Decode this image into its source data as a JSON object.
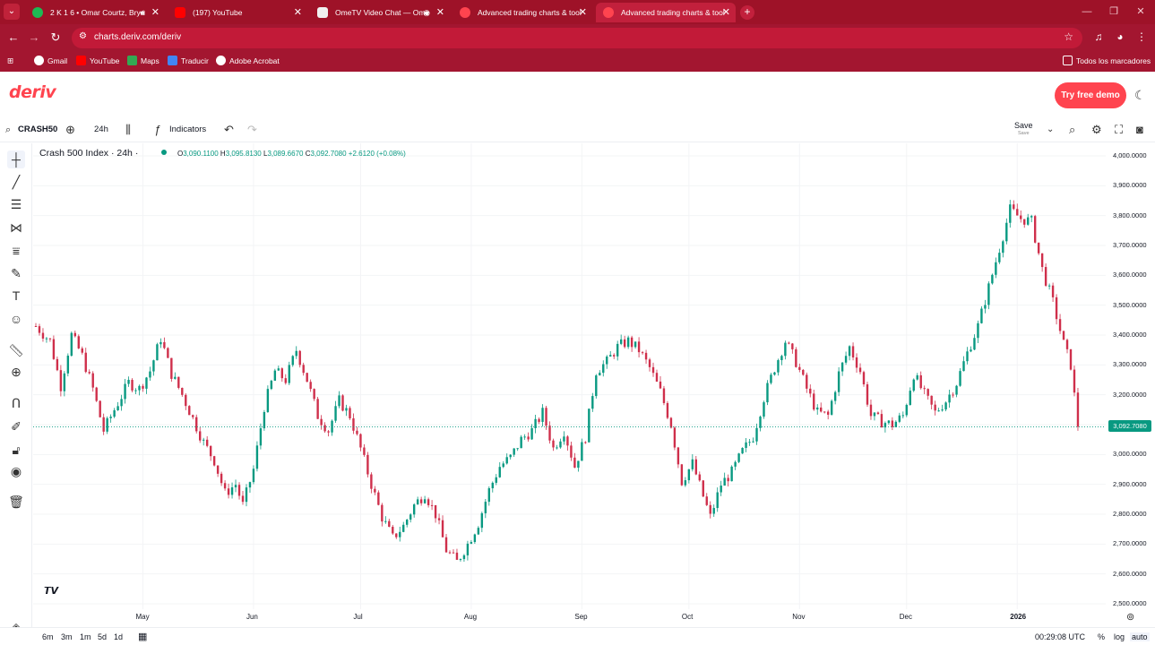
{
  "browser": {
    "tabs": [
      {
        "title": "2 K 1 6 • Omar Courtz, Brya",
        "has_audio": true,
        "icon": "spotify-icon",
        "color": "#1db954"
      },
      {
        "title": "(197) YouTube",
        "icon": "youtube-icon",
        "color": "#ff0000"
      },
      {
        "title": "OmeTV Video Chat — Ome",
        "icon": "ometv-icon",
        "color": "#f0f0f0"
      },
      {
        "title": "Advanced trading charts & tool",
        "icon": "deriv-icon",
        "color": "#ff444f"
      },
      {
        "title": "Advanced trading charts & tool",
        "icon": "deriv-icon",
        "color": "#ff444f",
        "active": true
      }
    ],
    "url": "charts.deriv.com/deriv",
    "bookmarks": [
      {
        "label": "Gmail",
        "icon": "google-icon",
        "color": "#ffffff"
      },
      {
        "label": "YouTube",
        "icon": "youtube-icon",
        "color": "#ff0000"
      },
      {
        "label": "Maps",
        "icon": "maps-icon",
        "color": "#34a853"
      },
      {
        "label": "Traducir",
        "icon": "translate-icon",
        "color": "#4285f4"
      },
      {
        "label": "Adobe Acrobat",
        "icon": "acrobat-icon",
        "color": "#ffffff"
      }
    ],
    "all_bookmarks": "Todos los marcadores",
    "theme_color": "#a31630"
  },
  "site": {
    "logo": "deriv",
    "demo_button": "Try free demo",
    "brand_color": "#ff444f"
  },
  "toolbar": {
    "symbol": "CRASH50",
    "interval": "24h",
    "indicators": "Indicators",
    "save": "Save",
    "save_sub": "Save"
  },
  "legend": {
    "title": "Crash 500 Index · 24h ·",
    "open_label": "O",
    "open": "3,090.1100",
    "high_label": "H",
    "high": "3,095.8130",
    "low_label": "L",
    "low": "3,089.6670",
    "close_label": "C",
    "close": "3,092.7080",
    "change": "+2.6120 (+0.08%)"
  },
  "bottom": {
    "ranges": [
      "6m",
      "3m",
      "1m",
      "5d",
      "1d"
    ],
    "clock": "00:29:08 UTC",
    "percent": "%",
    "log": "log",
    "auto": "auto"
  },
  "chart_data": {
    "type": "candlestick",
    "title": "Crash 500 Index · 24h",
    "up_color": "#089981",
    "down_color": "#cf2f4b",
    "current_price": "3,092.7080",
    "current_value": 3092.708,
    "ylim": [
      2450,
      4050
    ],
    "y_ticks": [
      "4,000.0000",
      "3,900.0000",
      "3,800.0000",
      "3,700.0000",
      "3,600.0000",
      "3,500.0000",
      "3,400.0000",
      "3,300.0000",
      "3,200.0000",
      "3,100.0000",
      "3,000.0000",
      "2,900.0000",
      "2,800.0000",
      "2,700.0000",
      "2,600.0000",
      "2,500.0000"
    ],
    "y_tick_values": [
      4000,
      3900,
      3800,
      3700,
      3600,
      3500,
      3400,
      3300,
      3200,
      3100,
      3000,
      2900,
      2800,
      2700,
      2600,
      2500
    ],
    "x_ticks": [
      "May",
      "Jun",
      "Jul",
      "Aug",
      "Sep",
      "Oct",
      "Nov",
      "Dec",
      "2026"
    ],
    "x_tick_days": [
      30,
      61,
      91,
      122,
      153,
      183,
      214,
      244,
      275
    ],
    "x_range_days": [
      0,
      290
    ],
    "close_path": [
      {
        "d": 0,
        "v": 3430
      },
      {
        "d": 4,
        "v": 3380
      },
      {
        "d": 7,
        "v": 3230
      },
      {
        "d": 10,
        "v": 3400
      },
      {
        "d": 13,
        "v": 3330
      },
      {
        "d": 16,
        "v": 3220
      },
      {
        "d": 19,
        "v": 3080
      },
      {
        "d": 22,
        "v": 3150
      },
      {
        "d": 26,
        "v": 3240
      },
      {
        "d": 29,
        "v": 3220
      },
      {
        "d": 32,
        "v": 3280
      },
      {
        "d": 35,
        "v": 3390
      },
      {
        "d": 38,
        "v": 3270
      },
      {
        "d": 41,
        "v": 3200
      },
      {
        "d": 44,
        "v": 3120
      },
      {
        "d": 47,
        "v": 3040
      },
      {
        "d": 50,
        "v": 2980
      },
      {
        "d": 53,
        "v": 2870
      },
      {
        "d": 56,
        "v": 2900
      },
      {
        "d": 58,
        "v": 2830
      },
      {
        "d": 61,
        "v": 2950
      },
      {
        "d": 64,
        "v": 3160
      },
      {
        "d": 67,
        "v": 3280
      },
      {
        "d": 70,
        "v": 3250
      },
      {
        "d": 73,
        "v": 3350
      },
      {
        "d": 76,
        "v": 3250
      },
      {
        "d": 79,
        "v": 3130
      },
      {
        "d": 82,
        "v": 3080
      },
      {
        "d": 85,
        "v": 3180
      },
      {
        "d": 88,
        "v": 3130
      },
      {
        "d": 91,
        "v": 3020
      },
      {
        "d": 94,
        "v": 2900
      },
      {
        "d": 97,
        "v": 2790
      },
      {
        "d": 100,
        "v": 2720
      },
      {
        "d": 103,
        "v": 2760
      },
      {
        "d": 106,
        "v": 2830
      },
      {
        "d": 109,
        "v": 2870
      },
      {
        "d": 112,
        "v": 2800
      },
      {
        "d": 115,
        "v": 2680
      },
      {
        "d": 118,
        "v": 2640
      },
      {
        "d": 121,
        "v": 2700
      },
      {
        "d": 124,
        "v": 2770
      },
      {
        "d": 127,
        "v": 2880
      },
      {
        "d": 130,
        "v": 2960
      },
      {
        "d": 133,
        "v": 2990
      },
      {
        "d": 136,
        "v": 3050
      },
      {
        "d": 139,
        "v": 3080
      },
      {
        "d": 142,
        "v": 3140
      },
      {
        "d": 145,
        "v": 3020
      },
      {
        "d": 148,
        "v": 3080
      },
      {
        "d": 151,
        "v": 2960
      },
      {
        "d": 154,
        "v": 3060
      },
      {
        "d": 157,
        "v": 3280
      },
      {
        "d": 160,
        "v": 3310
      },
      {
        "d": 163,
        "v": 3360
      },
      {
        "d": 166,
        "v": 3380
      },
      {
        "d": 169,
        "v": 3350
      },
      {
        "d": 172,
        "v": 3290
      },
      {
        "d": 175,
        "v": 3210
      },
      {
        "d": 178,
        "v": 3100
      },
      {
        "d": 181,
        "v": 2910
      },
      {
        "d": 184,
        "v": 2970
      },
      {
        "d": 187,
        "v": 2860
      },
      {
        "d": 189,
        "v": 2790
      },
      {
        "d": 192,
        "v": 2900
      },
      {
        "d": 195,
        "v": 2940
      },
      {
        "d": 198,
        "v": 3010
      },
      {
        "d": 201,
        "v": 3060
      },
      {
        "d": 204,
        "v": 3190
      },
      {
        "d": 207,
        "v": 3290
      },
      {
        "d": 210,
        "v": 3380
      },
      {
        "d": 213,
        "v": 3310
      },
      {
        "d": 216,
        "v": 3220
      },
      {
        "d": 219,
        "v": 3140
      },
      {
        "d": 222,
        "v": 3130
      },
      {
        "d": 225,
        "v": 3270
      },
      {
        "d": 228,
        "v": 3360
      },
      {
        "d": 231,
        "v": 3280
      },
      {
        "d": 234,
        "v": 3130
      },
      {
        "d": 237,
        "v": 3110
      },
      {
        "d": 240,
        "v": 3100
      },
      {
        "d": 243,
        "v": 3130
      },
      {
        "d": 246,
        "v": 3270
      },
      {
        "d": 249,
        "v": 3200
      },
      {
        "d": 252,
        "v": 3140
      },
      {
        "d": 255,
        "v": 3180
      },
      {
        "d": 258,
        "v": 3240
      },
      {
        "d": 261,
        "v": 3340
      },
      {
        "d": 264,
        "v": 3430
      },
      {
        "d": 267,
        "v": 3560
      },
      {
        "d": 270,
        "v": 3690
      },
      {
        "d": 273,
        "v": 3820
      },
      {
        "d": 276,
        "v": 3790
      },
      {
        "d": 279,
        "v": 3780
      },
      {
        "d": 282,
        "v": 3620
      },
      {
        "d": 285,
        "v": 3510
      },
      {
        "d": 288,
        "v": 3370
      },
      {
        "d": 290,
        "v": 3300
      },
      {
        "d": 292,
        "v": 3093
      }
    ]
  }
}
